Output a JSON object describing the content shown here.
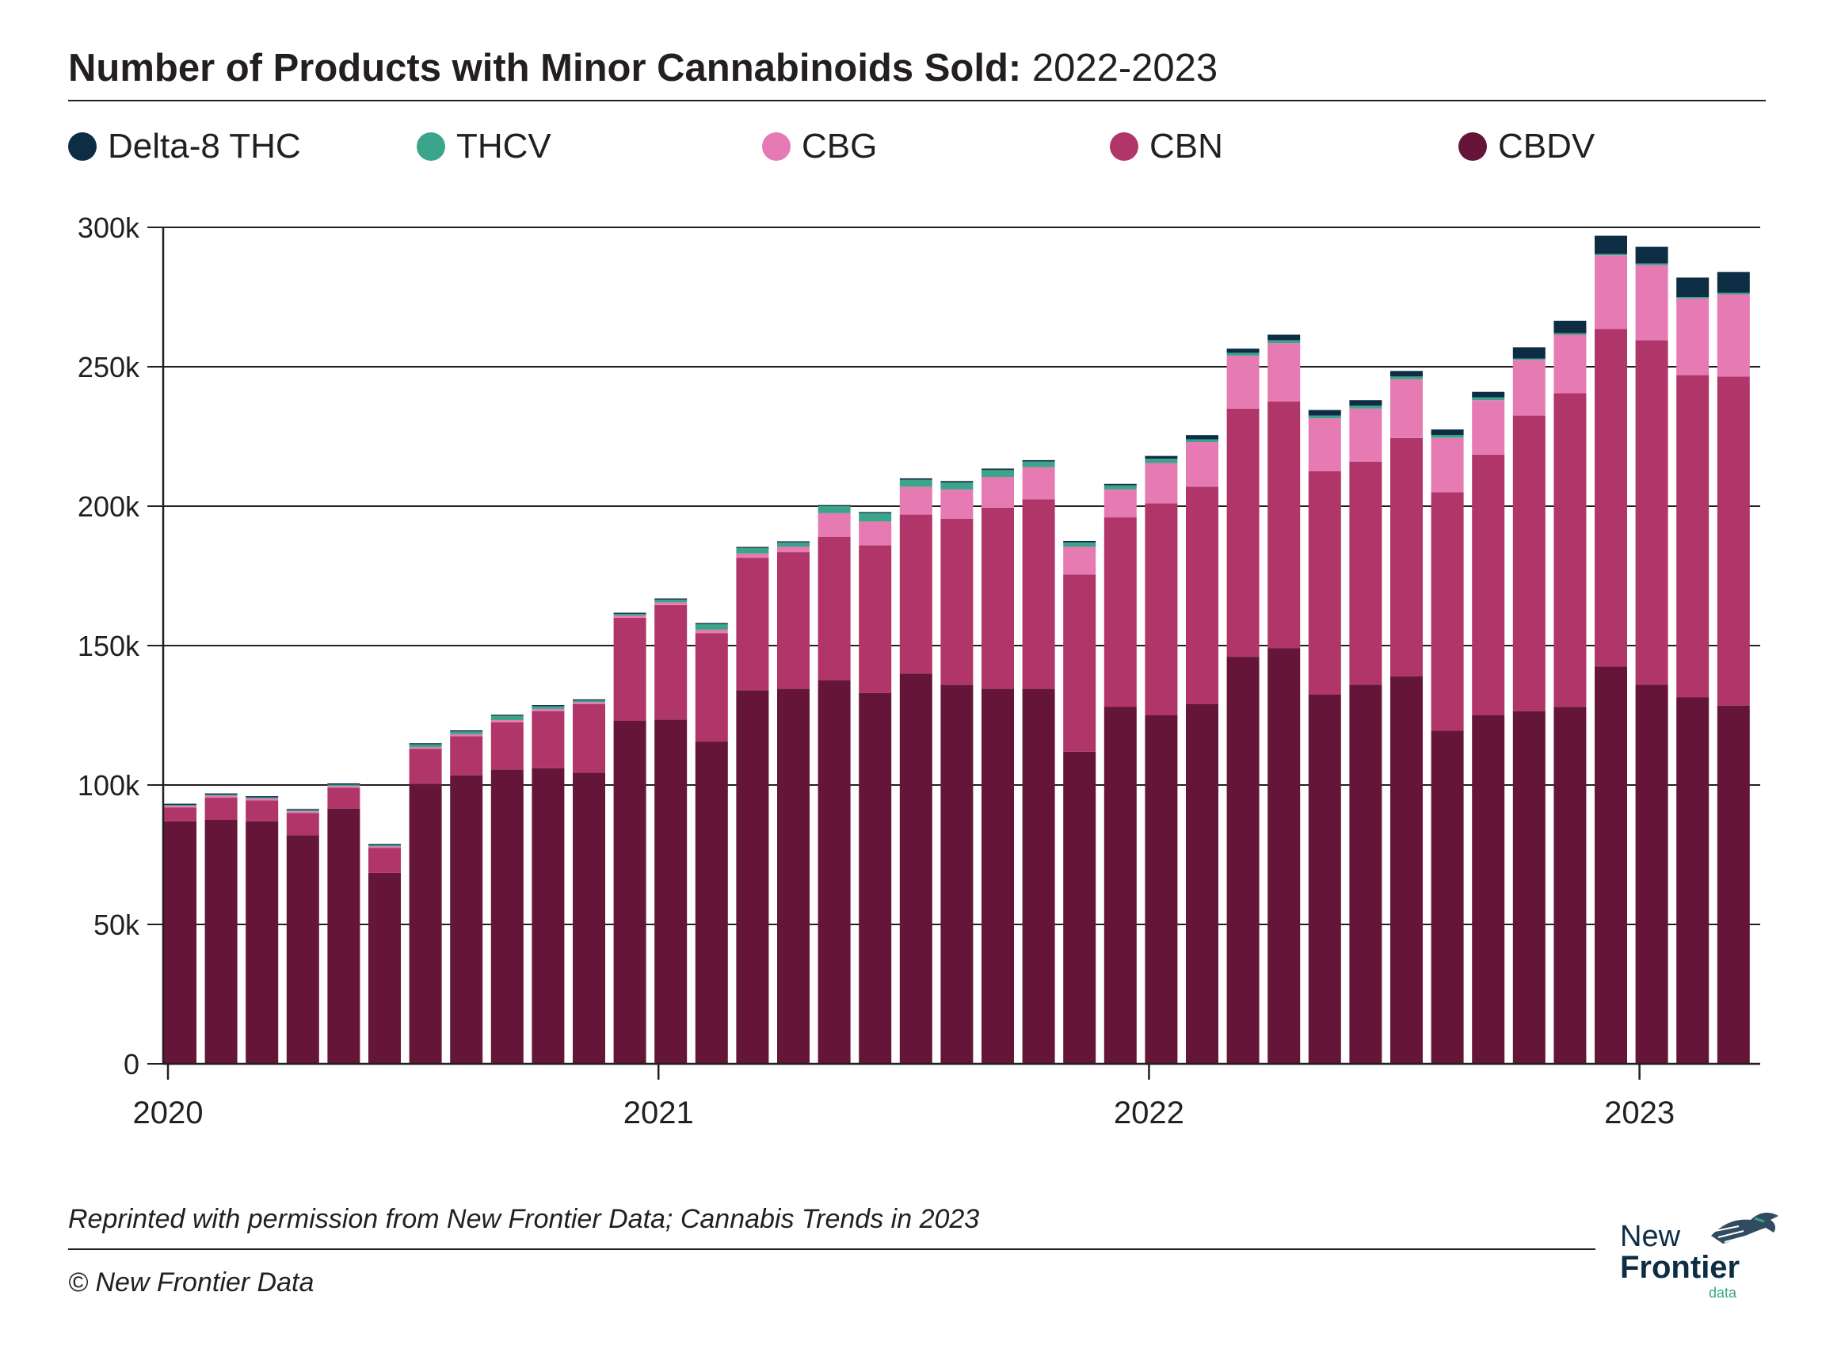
{
  "header": {
    "title_bold": "Number of Products with Minor Cannabinoids Sold:",
    "title_light": "2022-2023"
  },
  "footer": {
    "source": "Reprinted with permission from New Frontier Data; Cannabis Trends in 2023",
    "copyright": "© New Frontier Data"
  },
  "logo": {
    "line1": "New",
    "line2": "Frontier",
    "line3": "data"
  },
  "chart_data": {
    "type": "bar",
    "stacked": true,
    "title": "Number of Products with Minor Cannabinoids Sold: 2022-2023",
    "ylim": [
      0,
      300000
    ],
    "yticks": [
      0,
      50000,
      100000,
      150000,
      200000,
      250000,
      300000
    ],
    "ytick_labels": [
      "0",
      "50k",
      "100k",
      "150k",
      "200k",
      "250k",
      "300k"
    ],
    "xtick_labels": [
      {
        "label": "2020",
        "index": 0
      },
      {
        "label": "2021",
        "index": 12
      },
      {
        "label": "2022",
        "index": 24
      },
      {
        "label": "2023",
        "index": 36
      }
    ],
    "categories": [
      "2020-01",
      "2020-02",
      "2020-03",
      "2020-04",
      "2020-05",
      "2020-06",
      "2020-07",
      "2020-08",
      "2020-09",
      "2020-10",
      "2020-11",
      "2020-12",
      "2021-01",
      "2021-02",
      "2021-03",
      "2021-04",
      "2021-05",
      "2021-06",
      "2021-07",
      "2021-08",
      "2021-09",
      "2021-10",
      "2021-11",
      "2021-12",
      "2022-01",
      "2022-02",
      "2022-03",
      "2022-04",
      "2022-05",
      "2022-06",
      "2022-07",
      "2022-08",
      "2022-09",
      "2022-10",
      "2022-11",
      "2022-12",
      "2023-01",
      "2023-02",
      "2023-03"
    ],
    "legend_position": "top",
    "grid": true,
    "series": [
      {
        "name": "CBDV",
        "color": "#651538",
        "values": [
          87000,
          87500,
          87000,
          82000,
          91500,
          68500,
          100500,
          103500,
          105500,
          106000,
          104500,
          123000,
          123500,
          115500,
          134000,
          134500,
          137500,
          133000,
          140000,
          136000,
          134500,
          134500,
          112000,
          128000,
          125000,
          129000,
          146000,
          149000,
          132500,
          136000,
          139000,
          119500,
          125000,
          126500,
          128000,
          142500,
          136000,
          131500,
          128500
        ]
      },
      {
        "name": "CBN",
        "color": "#b03569",
        "values": [
          5000,
          8000,
          7500,
          8000,
          7500,
          9000,
          12500,
          14000,
          17000,
          20500,
          24500,
          37000,
          41000,
          39000,
          47500,
          49000,
          51500,
          53000,
          57000,
          59500,
          65000,
          68000,
          63500,
          68000,
          76000,
          78000,
          89000,
          88500,
          80000,
          80000,
          85500,
          85500,
          93500,
          106000,
          112500,
          121000,
          123500,
          115500,
          118000
        ]
      },
      {
        "name": "CBG",
        "color": "#e57bb2",
        "values": [
          500,
          700,
          700,
          600,
          700,
          500,
          600,
          700,
          800,
          800,
          700,
          800,
          1000,
          1200,
          1500,
          2000,
          8500,
          8500,
          10000,
          10500,
          11000,
          11500,
          10000,
          10000,
          14500,
          16000,
          19000,
          21000,
          19000,
          19000,
          21000,
          19500,
          19500,
          20000,
          21000,
          26500,
          27000,
          27500,
          29500
        ]
      },
      {
        "name": "THCV",
        "color": "#3aa58a",
        "values": [
          400,
          400,
          400,
          400,
          500,
          400,
          1000,
          1000,
          1500,
          1000,
          600,
          600,
          1000,
          2000,
          2000,
          1500,
          2500,
          3000,
          2500,
          2500,
          2500,
          2000,
          1500,
          1500,
          1500,
          1000,
          1000,
          1000,
          1000,
          1000,
          1000,
          1000,
          1000,
          500,
          500,
          500,
          500,
          500,
          500
        ]
      },
      {
        "name": "Delta-8 THC",
        "color": "#0d2d45",
        "values": [
          400,
          400,
          400,
          400,
          400,
          400,
          400,
          400,
          400,
          400,
          400,
          400,
          400,
          400,
          400,
          400,
          400,
          400,
          500,
          500,
          500,
          500,
          500,
          500,
          1000,
          1500,
          1500,
          2000,
          2000,
          2000,
          2000,
          2000,
          2000,
          4000,
          4500,
          6500,
          6000,
          7000,
          7500
        ]
      }
    ]
  }
}
